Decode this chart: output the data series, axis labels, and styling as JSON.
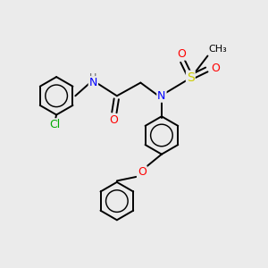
{
  "bg_color": "#ebebeb",
  "atom_colors": {
    "N": "#0000ff",
    "O": "#ff0000",
    "S": "#cccc00",
    "Cl": "#00aa00",
    "C": "#000000",
    "H": "#606060"
  },
  "bond_color": "#000000",
  "bond_width": 1.4,
  "ring_r": 0.72
}
